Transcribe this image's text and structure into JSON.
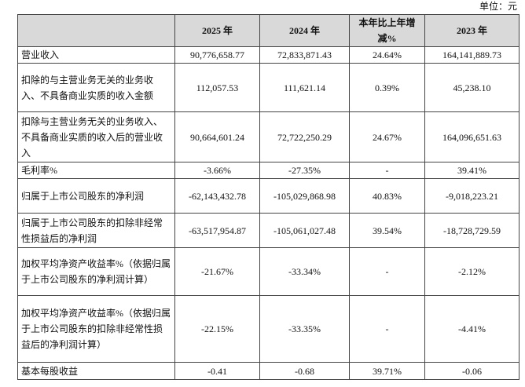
{
  "unit": "单位：元",
  "table": {
    "header": [
      "",
      "2025 年",
      "2024 年",
      "本年比上年增减%",
      "2023 年"
    ],
    "rows": [
      [
        "营业收入",
        "90,776,658.77",
        "72,833,871.43",
        "24.64%",
        "164,141,889.73"
      ],
      [
        "扣除的与主营业务无关的业务收入、不具备商业实质的收入金额",
        "112,057.53",
        "111,621.14",
        "0.39%",
        "45,238.10"
      ],
      [
        "扣除与主营业务无关的业务收入、不具备商业实质的收入后的营业收入",
        "90,664,601.24",
        "72,722,250.29",
        "24.67%",
        "164,096,651.63"
      ],
      [
        "毛利率%",
        "-3.66%",
        "-27.35%",
        "-",
        "39.41%"
      ],
      [
        "归属于上市公司股东的净利润",
        "-62,143,432.78",
        "-105,029,868.98",
        "40.83%",
        "-9,018,223.21"
      ],
      [
        "归属于上市公司股东的扣除非经常性损益后的净利润",
        "-63,517,954.87",
        "-105,061,027.48",
        "39.54%",
        "-18,728,729.59"
      ],
      [
        "加权平均净资产收益率%（依据归属于上市公司股东的净利润计算）",
        "-21.67%",
        "-33.34%",
        "-",
        "-2.12%"
      ],
      [
        "加权平均净资产收益率%（依据归属于上市公司股东的扣除非经常性损益后的净利润计算）",
        "-22.15%",
        "-33.35%",
        "-",
        "-4.41%"
      ],
      [
        "基本每股收益",
        "-0.41",
        "-0.68",
        "39.71%",
        "-0.06"
      ]
    ]
  }
}
